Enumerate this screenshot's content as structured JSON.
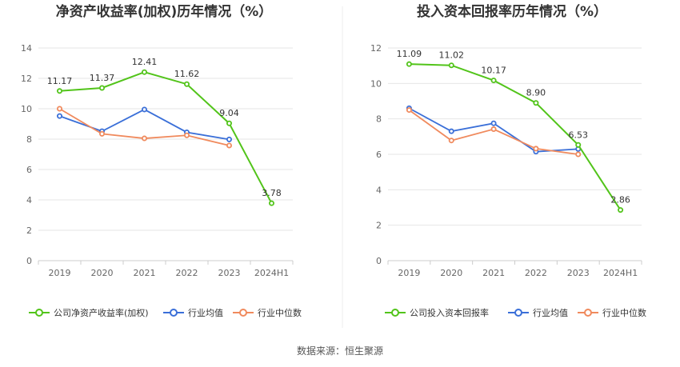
{
  "source_text": "数据来源：恒生聚源",
  "chart_data": [
    {
      "type": "line",
      "title": "净资产收益率(加权)历年情况（%）",
      "categories": [
        "2019",
        "2020",
        "2021",
        "2022",
        "2023",
        "2024H1"
      ],
      "ylim": [
        0,
        14
      ],
      "yticks": [
        0,
        2,
        4,
        6,
        8,
        10,
        12,
        14
      ],
      "grid": true,
      "legend_position": "bottom",
      "series": [
        {
          "name": "公司净资产收益率(加权)",
          "color": "#52c41a",
          "values": [
            11.17,
            11.37,
            12.41,
            11.62,
            9.04,
            3.78
          ],
          "labels": [
            "11.17",
            "11.37",
            "12.41",
            "11.62",
            "9.04",
            "3.78"
          ]
        },
        {
          "name": "行业均值",
          "color": "#3a6fd8",
          "values": [
            9.52,
            8.52,
            9.95,
            8.45,
            7.98,
            null
          ]
        },
        {
          "name": "行业中位数",
          "color": "#f08a5d",
          "values": [
            10.0,
            8.35,
            8.05,
            8.25,
            7.58,
            null
          ]
        }
      ]
    },
    {
      "type": "line",
      "title": "投入资本回报率历年情况（%）",
      "categories": [
        "2019",
        "2020",
        "2021",
        "2022",
        "2023",
        "2024H1"
      ],
      "ylim": [
        0,
        12
      ],
      "yticks": [
        0,
        2,
        4,
        6,
        8,
        10,
        12
      ],
      "grid": true,
      "legend_position": "bottom",
      "series": [
        {
          "name": "公司投入资本回报率",
          "color": "#52c41a",
          "values": [
            11.09,
            11.02,
            10.17,
            8.9,
            6.53,
            2.86
          ],
          "labels": [
            "11.09",
            "11.02",
            "10.17",
            "8.90",
            "6.53",
            "2.86"
          ]
        },
        {
          "name": "行业均值",
          "color": "#3a6fd8",
          "values": [
            8.6,
            7.3,
            7.75,
            6.15,
            6.3,
            null
          ]
        },
        {
          "name": "行业中位数",
          "color": "#f08a5d",
          "values": [
            8.5,
            6.78,
            7.42,
            6.32,
            6.0,
            null
          ]
        }
      ]
    }
  ]
}
